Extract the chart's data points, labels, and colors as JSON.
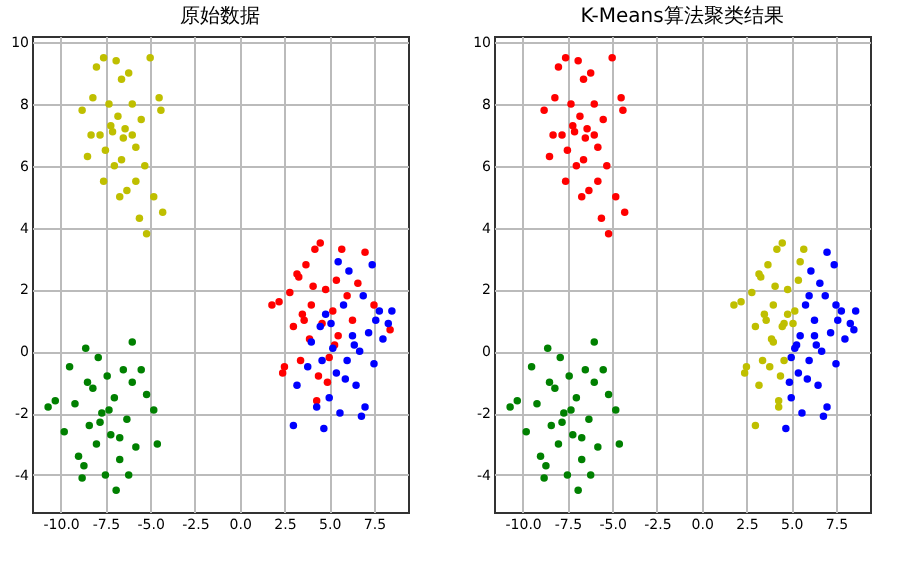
{
  "chart_data": [
    {
      "type": "scatter",
      "title": "原始数据",
      "xlim": [
        -11.6,
        9.4
      ],
      "ylim": [
        -5.2,
        10.2
      ],
      "xticks": [
        {
          "value": -10,
          "label": "-10.0"
        },
        -7.5,
        {
          "value": -5,
          "label": "-5.0"
        },
        -2.5,
        {
          "value": 0,
          "label": "0.0"
        },
        2.5,
        {
          "value": 5,
          "label": "5.0"
        },
        7.5
      ],
      "yticks": [
        -4,
        -2,
        0,
        2,
        4,
        6,
        8,
        10
      ],
      "grid": true,
      "marker": "circle",
      "series": [
        {
          "color": "#bfbf00",
          "x": [
            -8.8,
            -8.5,
            -8.2,
            -8.0,
            -7.8,
            -7.6,
            -7.5,
            -7.3,
            -7.2,
            -7.0,
            -6.9,
            -6.8,
            -6.7,
            -6.6,
            -6.5,
            -6.4,
            -6.3,
            -6.2,
            -6.0,
            -5.8,
            -5.6,
            -5.5,
            -5.3,
            -5.0,
            -4.8,
            -4.5,
            -4.4,
            -5.2,
            -5.8,
            -6.0,
            -7.6,
            -7.1,
            -6.6,
            -8.3,
            -4.3
          ],
          "values": [
            7.8,
            6.3,
            8.2,
            9.2,
            7.0,
            9.5,
            6.5,
            8.0,
            7.3,
            6.0,
            9.4,
            7.6,
            5.0,
            8.8,
            6.9,
            7.2,
            5.2,
            9.0,
            8.0,
            6.6,
            4.3,
            7.5,
            6.0,
            9.5,
            5.0,
            8.2,
            7.8,
            3.8,
            5.5,
            7.0,
            5.5,
            7.1,
            6.2,
            7.0,
            4.5
          ]
        },
        {
          "color": "#008000",
          "x": [
            -10.7,
            -10.3,
            -9.8,
            -9.5,
            -9.2,
            -9.0,
            -8.8,
            -8.6,
            -8.4,
            -8.2,
            -8.0,
            -7.9,
            -7.7,
            -7.5,
            -7.4,
            -7.2,
            -7.0,
            -6.9,
            -6.7,
            -6.5,
            -6.3,
            -6.0,
            -5.8,
            -5.5,
            -5.2,
            -4.8,
            -4.6,
            -8.5,
            -7.8,
            -6.0,
            -6.7,
            -8.7,
            -7.3,
            -6.2
          ],
          "values": [
            -1.8,
            -1.6,
            -2.6,
            -0.5,
            -1.7,
            -3.4,
            -4.1,
            0.1,
            -2.4,
            -1.2,
            -3.0,
            -0.2,
            -2.0,
            -4.0,
            -0.8,
            -2.7,
            -1.5,
            -4.5,
            -3.5,
            -0.6,
            -2.2,
            -1.0,
            -3.1,
            -0.6,
            -1.4,
            -1.9,
            -3.0,
            -1.0,
            -2.3,
            0.3,
            -2.8,
            -3.7,
            -1.9,
            -4.0
          ]
        },
        {
          "color": "#ff0000",
          "x": [
            1.8,
            2.2,
            2.5,
            2.8,
            3.0,
            3.2,
            3.4,
            3.5,
            3.7,
            3.9,
            4.0,
            4.2,
            4.3,
            4.5,
            4.6,
            4.8,
            5.0,
            5.2,
            5.4,
            5.5,
            5.7,
            6.0,
            6.3,
            6.6,
            7.0,
            7.5,
            8.4,
            4.4,
            3.6,
            4.9,
            5.3,
            4.1,
            3.3,
            2.4
          ],
          "values": [
            1.5,
            1.6,
            -0.5,
            1.9,
            0.8,
            2.5,
            -0.3,
            1.2,
            2.8,
            0.4,
            1.5,
            3.3,
            -1.6,
            3.5,
            0.9,
            2.0,
            -0.2,
            1.3,
            2.3,
            0.5,
            3.3,
            1.8,
            1.0,
            2.2,
            3.2,
            1.5,
            0.7,
            -0.8,
            1.0,
            -1.0,
            0.2,
            2.1,
            2.4,
            -0.7
          ]
        },
        {
          "color": "#0000ff",
          "x": [
            3.0,
            3.2,
            3.8,
            4.0,
            4.3,
            4.5,
            4.7,
            4.8,
            5.0,
            5.2,
            5.4,
            5.5,
            5.6,
            5.8,
            6.0,
            6.1,
            6.3,
            6.5,
            6.7,
            6.9,
            7.0,
            7.2,
            7.4,
            7.5,
            7.8,
            8.0,
            8.3,
            8.5,
            5.9,
            6.4,
            4.6,
            5.1,
            6.8,
            7.6
          ],
          "values": [
            -2.4,
            -1.1,
            -0.5,
            0.3,
            -1.8,
            0.8,
            -2.5,
            1.2,
            -1.5,
            0.1,
            -0.7,
            2.9,
            -2.0,
            1.5,
            -0.3,
            2.6,
            0.5,
            -1.1,
            0.0,
            1.8,
            -1.8,
            0.6,
            2.8,
            -0.4,
            1.3,
            0.4,
            0.9,
            1.3,
            -0.9,
            0.2,
            -0.3,
            0.9,
            -2.1,
            1.0
          ]
        }
      ]
    },
    {
      "type": "scatter",
      "title": "K-Means算法聚类结果",
      "xlim": [
        -11.6,
        9.4
      ],
      "ylim": [
        -5.2,
        10.2
      ],
      "xticks": [
        {
          "value": -10,
          "label": "-10.0"
        },
        -7.5,
        {
          "value": -5,
          "label": "-5.0"
        },
        -2.5,
        {
          "value": 0,
          "label": "0.0"
        },
        2.5,
        {
          "value": 5,
          "label": "5.0"
        },
        7.5
      ],
      "yticks": [
        -4,
        -2,
        0,
        2,
        4,
        6,
        8,
        10
      ],
      "grid": true,
      "marker": "circle",
      "series": [
        {
          "color": "#ff0000",
          "x": [
            -8.8,
            -8.5,
            -8.2,
            -8.0,
            -7.8,
            -7.6,
            -7.5,
            -7.3,
            -7.2,
            -7.0,
            -6.9,
            -6.8,
            -6.7,
            -6.6,
            -6.5,
            -6.4,
            -6.3,
            -6.2,
            -6.0,
            -5.8,
            -5.6,
            -5.5,
            -5.3,
            -5.0,
            -4.8,
            -4.5,
            -4.4,
            -5.2,
            -5.8,
            -6.0,
            -7.6,
            -7.1,
            -6.6,
            -8.3,
            -4.3
          ],
          "values": [
            7.8,
            6.3,
            8.2,
            9.2,
            7.0,
            9.5,
            6.5,
            8.0,
            7.3,
            6.0,
            9.4,
            7.6,
            5.0,
            8.8,
            6.9,
            7.2,
            5.2,
            9.0,
            8.0,
            6.6,
            4.3,
            7.5,
            6.0,
            9.5,
            5.0,
            8.2,
            7.8,
            3.8,
            5.5,
            7.0,
            5.5,
            7.1,
            6.2,
            7.0,
            4.5
          ]
        },
        {
          "color": "#008000",
          "x": [
            -10.7,
            -10.3,
            -9.8,
            -9.5,
            -9.2,
            -9.0,
            -8.8,
            -8.6,
            -8.4,
            -8.2,
            -8.0,
            -7.9,
            -7.7,
            -7.5,
            -7.4,
            -7.2,
            -7.0,
            -6.9,
            -6.7,
            -6.5,
            -6.3,
            -6.0,
            -5.8,
            -5.5,
            -5.2,
            -4.8,
            -4.6,
            -8.5,
            -7.8,
            -6.0,
            -6.7,
            -8.7,
            -7.3,
            -6.2
          ],
          "values": [
            -1.8,
            -1.6,
            -2.6,
            -0.5,
            -1.7,
            -3.4,
            -4.1,
            0.1,
            -2.4,
            -1.2,
            -3.0,
            -0.2,
            -2.0,
            -4.0,
            -0.8,
            -2.7,
            -1.5,
            -4.5,
            -3.5,
            -0.6,
            -2.2,
            -1.0,
            -3.1,
            -0.6,
            -1.4,
            -1.9,
            -3.0,
            -1.0,
            -2.3,
            0.3,
            -2.8,
            -3.7,
            -1.9,
            -4.0
          ]
        },
        {
          "color": "#bfbf00",
          "x": [
            1.8,
            2.2,
            2.5,
            2.8,
            3.0,
            3.2,
            3.4,
            3.5,
            3.7,
            3.9,
            4.0,
            4.2,
            4.3,
            4.5,
            4.6,
            4.8,
            5.2,
            5.4,
            5.7,
            4.4,
            3.6,
            4.1,
            3.3,
            2.4,
            3.0,
            3.2,
            3.8,
            4.0,
            4.3,
            4.5,
            4.8,
            5.5,
            4.6,
            5.1
          ],
          "values": [
            1.5,
            1.6,
            -0.5,
            1.9,
            0.8,
            2.5,
            -0.3,
            1.2,
            2.8,
            0.4,
            1.5,
            3.3,
            -1.6,
            3.5,
            0.9,
            2.0,
            1.3,
            2.3,
            3.3,
            -0.8,
            1.0,
            2.1,
            2.4,
            -0.7,
            -2.4,
            -1.1,
            -0.5,
            0.3,
            -1.8,
            0.8,
            1.2,
            2.9,
            -0.3,
            0.9
          ]
        },
        {
          "color": "#0000ff",
          "x": [
            5.0,
            5.5,
            6.0,
            6.3,
            6.6,
            7.0,
            7.5,
            8.6,
            4.9,
            5.3,
            4.7,
            5.0,
            5.2,
            5.4,
            5.6,
            5.8,
            6.0,
            6.1,
            6.3,
            6.5,
            6.7,
            6.9,
            7.0,
            7.2,
            7.4,
            7.5,
            7.8,
            8.0,
            8.3,
            8.5,
            5.9,
            6.4,
            6.8,
            7.6
          ],
          "values": [
            -0.2,
            0.5,
            1.8,
            1.0,
            2.2,
            3.2,
            1.5,
            1.3,
            -1.0,
            0.2,
            -2.5,
            -1.5,
            0.1,
            -0.7,
            -2.0,
            1.5,
            -0.3,
            2.6,
            0.5,
            -1.1,
            0.0,
            1.8,
            -1.8,
            0.6,
            2.8,
            -0.4,
            1.3,
            0.4,
            0.9,
            0.7,
            -0.9,
            0.2,
            -2.1,
            1.0
          ]
        }
      ]
    }
  ]
}
